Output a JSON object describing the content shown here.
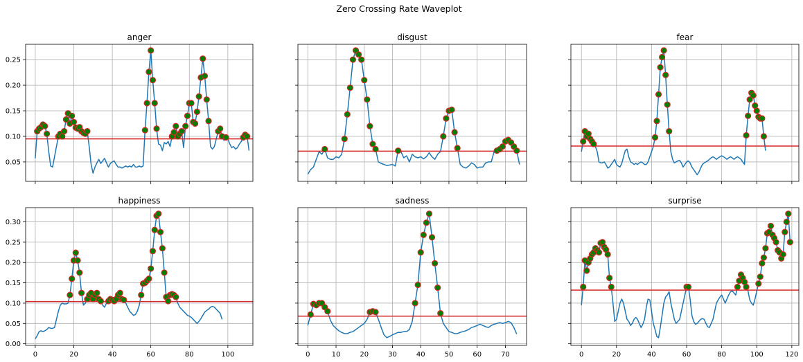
{
  "suptitle": "Zero Crossing Rate Waveplot",
  "colors": {
    "line": "#1f77b4",
    "threshold": "#d62728",
    "marker_face": "#008000",
    "marker_edge": "#d62728",
    "grid": "#b0b0b0"
  },
  "chart_data": [
    {
      "type": "line",
      "title": "anger",
      "grid": true,
      "sharey": "top",
      "xlim": [
        -5,
        113
      ],
      "ylim": [
        0.012,
        0.28
      ],
      "xticks": [],
      "yticks": [
        0.05,
        0.1,
        0.15,
        0.2,
        0.25
      ],
      "threshold": 0.095,
      "y": [
        0.057,
        0.11,
        0.115,
        0.118,
        0.123,
        0.12,
        0.105,
        0.07,
        0.042,
        0.04,
        0.06,
        0.08,
        0.1,
        0.105,
        0.1,
        0.11,
        0.133,
        0.145,
        0.125,
        0.14,
        0.128,
        0.117,
        0.115,
        0.118,
        0.11,
        0.107,
        0.105,
        0.11,
        0.08,
        0.045,
        0.028,
        0.04,
        0.048,
        0.055,
        0.047,
        0.052,
        0.057,
        0.048,
        0.04,
        0.047,
        0.05,
        0.052,
        0.045,
        0.04,
        0.04,
        0.038,
        0.04,
        0.042,
        0.04,
        0.042,
        0.04,
        0.045,
        0.04,
        0.04,
        0.042,
        0.04,
        0.042,
        0.112,
        0.165,
        0.226,
        0.268,
        0.21,
        0.165,
        0.115,
        0.085,
        0.083,
        0.072,
        0.088,
        0.085,
        0.09,
        0.08,
        0.1,
        0.108,
        0.12,
        0.1,
        0.105,
        0.11,
        0.078,
        0.12,
        0.14,
        0.165,
        0.165,
        0.128,
        0.125,
        0.148,
        0.178,
        0.215,
        0.252,
        0.218,
        0.172,
        0.13,
        0.08,
        0.075,
        0.08,
        0.095,
        0.11,
        0.115,
        0.1,
        0.092,
        0.098,
        0.095,
        0.085,
        0.078,
        0.08,
        0.075,
        0.078,
        0.085,
        0.09,
        0.098,
        0.103,
        0.1,
        0.072
      ]
    },
    {
      "type": "line",
      "title": "disgust",
      "grid": true,
      "sharey": "top",
      "xlim": [
        -3.5,
        77.5
      ],
      "ylim": [
        0.012,
        0.28
      ],
      "xticks": [],
      "yticks": [],
      "threshold": 0.071,
      "y": [
        0.026,
        0.035,
        0.04,
        0.055,
        0.07,
        0.065,
        0.075,
        0.058,
        0.055,
        0.055,
        0.06,
        0.058,
        0.065,
        0.095,
        0.143,
        0.195,
        0.25,
        0.268,
        0.26,
        0.25,
        0.21,
        0.172,
        0.12,
        0.085,
        0.075,
        0.05,
        0.047,
        0.045,
        0.043,
        0.044,
        0.045,
        0.042,
        0.072,
        0.07,
        0.058,
        0.062,
        0.05,
        0.065,
        0.06,
        0.058,
        0.06,
        0.056,
        0.06,
        0.068,
        0.06,
        0.055,
        0.065,
        0.07,
        0.1,
        0.135,
        0.15,
        0.152,
        0.108,
        0.077,
        0.045,
        0.04,
        0.038,
        0.042,
        0.048,
        0.045,
        0.038,
        0.04,
        0.04,
        0.048,
        0.05,
        0.05,
        0.07,
        0.072,
        0.075,
        0.08,
        0.09,
        0.093,
        0.088,
        0.08,
        0.072,
        0.045
      ]
    },
    {
      "type": "line",
      "title": "fear",
      "grid": true,
      "sharey": "top",
      "xlim": [
        -6,
        124
      ],
      "ylim": [
        0.012,
        0.28
      ],
      "xticks": [],
      "yticks": [],
      "threshold": 0.081,
      "y": [
        0.07,
        0.09,
        0.11,
        0.1,
        0.105,
        0.095,
        0.09,
        0.085,
        0.08,
        0.07,
        0.05,
        0.048,
        0.048,
        0.05,
        0.045,
        0.038,
        0.04,
        0.045,
        0.05,
        0.055,
        0.045,
        0.042,
        0.04,
        0.047,
        0.06,
        0.072,
        0.075,
        0.06,
        0.05,
        0.048,
        0.045,
        0.047,
        0.045,
        0.048,
        0.05,
        0.048,
        0.045,
        0.045,
        0.05,
        0.06,
        0.07,
        0.08,
        0.098,
        0.13,
        0.182,
        0.235,
        0.255,
        0.268,
        0.22,
        0.162,
        0.11,
        0.07,
        0.055,
        0.048,
        0.05,
        0.052,
        0.053,
        0.048,
        0.04,
        0.045,
        0.05,
        0.052,
        0.048,
        0.04,
        0.035,
        0.03,
        0.025,
        0.03,
        0.038,
        0.045,
        0.048,
        0.05,
        0.052,
        0.055,
        0.058,
        0.06,
        0.058,
        0.055,
        0.058,
        0.06,
        0.062,
        0.06,
        0.058,
        0.055,
        0.058,
        0.06,
        0.058,
        0.055,
        0.058,
        0.06,
        0.058,
        0.055,
        0.05,
        0.045,
        0.102,
        0.14,
        0.172,
        0.185,
        0.18,
        0.16,
        0.15,
        0.138,
        0.135,
        0.135,
        0.1,
        0.072
      ]
    },
    {
      "type": "line",
      "title": "happiness",
      "grid": true,
      "sharey": "bottom",
      "xlim": [
        -5,
        113
      ],
      "ylim": [
        -0.004,
        0.335
      ],
      "xticks": [
        0,
        20,
        40,
        60,
        80,
        100
      ],
      "yticks": [
        0.0,
        0.05,
        0.1,
        0.15,
        0.2,
        0.25,
        0.3
      ],
      "threshold": 0.104,
      "y": [
        0.012,
        0.02,
        0.03,
        0.032,
        0.03,
        0.032,
        0.035,
        0.04,
        0.038,
        0.038,
        0.04,
        0.06,
        0.08,
        0.095,
        0.1,
        0.098,
        0.098,
        0.1,
        0.12,
        0.16,
        0.205,
        0.224,
        0.205,
        0.175,
        0.125,
        0.095,
        0.1,
        0.11,
        0.12,
        0.125,
        0.11,
        0.12,
        0.125,
        0.11,
        0.105,
        0.095,
        0.09,
        0.1,
        0.105,
        0.11,
        0.108,
        0.105,
        0.11,
        0.12,
        0.125,
        0.11,
        0.108,
        0.1,
        0.09,
        0.08,
        0.075,
        0.07,
        0.072,
        0.08,
        0.095,
        0.12,
        0.148,
        0.15,
        0.155,
        0.16,
        0.185,
        0.228,
        0.28,
        0.315,
        0.32,
        0.275,
        0.235,
        0.175,
        0.115,
        0.105,
        0.12,
        0.122,
        0.12,
        0.115,
        0.1,
        0.09,
        0.085,
        0.08,
        0.075,
        0.07,
        0.068,
        0.065,
        0.06,
        0.055,
        0.05,
        0.055,
        0.062,
        0.07,
        0.078,
        0.082,
        0.085,
        0.09,
        0.092,
        0.09,
        0.085,
        0.08,
        0.075,
        0.06
      ]
    },
    {
      "type": "line",
      "title": "sadness",
      "grid": true,
      "sharey": "bottom",
      "xlim": [
        -3.5,
        77.5
      ],
      "ylim": [
        -0.004,
        0.335
      ],
      "xticks": [
        0,
        10,
        20,
        30,
        40,
        50,
        60,
        70
      ],
      "yticks": [],
      "threshold": 0.068,
      "y": [
        0.045,
        0.072,
        0.098,
        0.095,
        0.1,
        0.1,
        0.09,
        0.08,
        0.058,
        0.045,
        0.038,
        0.032,
        0.028,
        0.025,
        0.025,
        0.028,
        0.03,
        0.035,
        0.04,
        0.045,
        0.05,
        0.06,
        0.078,
        0.08,
        0.078,
        0.06,
        0.04,
        0.022,
        0.015,
        0.018,
        0.022,
        0.025,
        0.028,
        0.028,
        0.03,
        0.03,
        0.035,
        0.055,
        0.1,
        0.145,
        0.225,
        0.268,
        0.298,
        0.32,
        0.262,
        0.198,
        0.138,
        0.075,
        0.05,
        0.04,
        0.03,
        0.028,
        0.025,
        0.025,
        0.028,
        0.03,
        0.032,
        0.035,
        0.04,
        0.042,
        0.045,
        0.048,
        0.045,
        0.042,
        0.04,
        0.045,
        0.048,
        0.05,
        0.052,
        0.05,
        0.052,
        0.055,
        0.052,
        0.04,
        0.024
      ]
    },
    {
      "type": "line",
      "title": "surprise",
      "grid": true,
      "sharey": "bottom",
      "xlim": [
        -6,
        124
      ],
      "ylim": [
        -0.004,
        0.335
      ],
      "xticks": [
        0,
        20,
        40,
        60,
        80,
        100,
        120
      ],
      "yticks": [],
      "threshold": 0.132,
      "y": [
        0.095,
        0.14,
        0.205,
        0.18,
        0.2,
        0.21,
        0.22,
        0.225,
        0.235,
        0.23,
        0.225,
        0.248,
        0.25,
        0.238,
        0.232,
        0.22,
        0.162,
        0.14,
        0.1,
        0.055,
        0.06,
        0.08,
        0.1,
        0.11,
        0.1,
        0.08,
        0.06,
        0.055,
        0.045,
        0.05,
        0.06,
        0.065,
        0.06,
        0.05,
        0.04,
        0.048,
        0.06,
        0.09,
        0.11,
        0.108,
        0.08,
        0.05,
        0.035,
        0.018,
        0.015,
        0.04,
        0.07,
        0.1,
        0.115,
        0.12,
        0.128,
        0.1,
        0.08,
        0.06,
        0.05,
        0.055,
        0.06,
        0.08,
        0.1,
        0.12,
        0.14,
        0.14,
        0.11,
        0.07,
        0.055,
        0.048,
        0.05,
        0.055,
        0.06,
        0.062,
        0.06,
        0.05,
        0.042,
        0.04,
        0.05,
        0.06,
        0.08,
        0.1,
        0.108,
        0.115,
        0.12,
        0.11,
        0.1,
        0.11,
        0.12,
        0.128,
        0.13,
        0.125,
        0.12,
        0.14,
        0.155,
        0.17,
        0.162,
        0.152,
        0.14,
        0.13,
        0.108,
        0.1,
        0.095,
        0.11,
        0.13,
        0.148,
        0.165,
        0.198,
        0.212,
        0.235,
        0.272,
        0.275,
        0.29,
        0.268,
        0.26,
        0.25,
        0.23,
        0.225,
        0.21,
        0.22,
        0.275,
        0.3,
        0.32,
        0.25
      ]
    }
  ]
}
